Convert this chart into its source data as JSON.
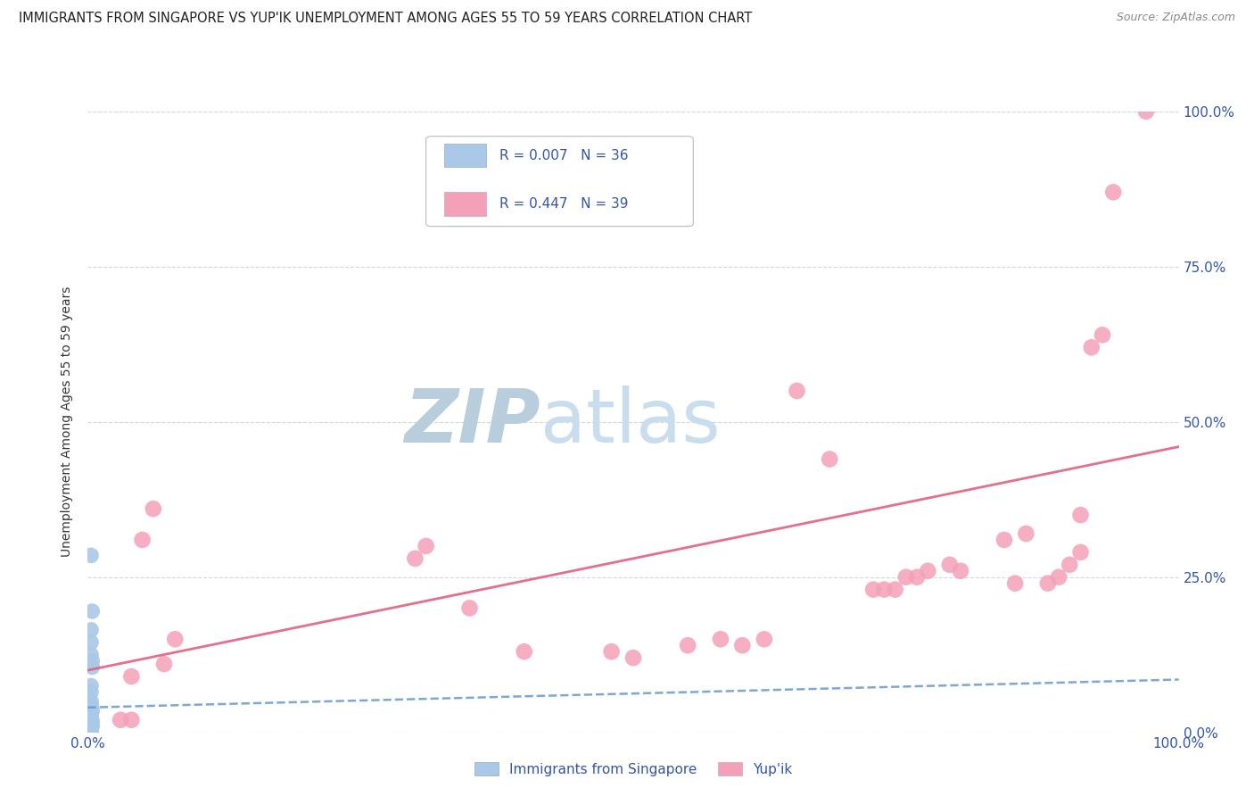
{
  "title": "IMMIGRANTS FROM SINGAPORE VS YUP'IK UNEMPLOYMENT AMONG AGES 55 TO 59 YEARS CORRELATION CHART",
  "source": "Source: ZipAtlas.com",
  "ylabel": "Unemployment Among Ages 55 to 59 years",
  "xlim": [
    0,
    1.0
  ],
  "ylim": [
    0,
    1.0
  ],
  "xticks": [
    0.0,
    0.25,
    0.5,
    0.75,
    1.0
  ],
  "yticks": [
    0.0,
    0.25,
    0.5,
    0.75,
    1.0
  ],
  "right_yticklabels": [
    "0.0%",
    "25.0%",
    "50.0%",
    "75.0%",
    "100.0%"
  ],
  "legend_r1": "R = 0.007",
  "legend_n1": "N = 36",
  "legend_r2": "R = 0.447",
  "legend_n2": "N = 39",
  "series1_label": "Immigrants from Singapore",
  "series2_label": "Yup'ik",
  "color1": "#aac8e8",
  "color2": "#f4a0b8",
  "trendline1_color": "#6699cc",
  "trendline2_color": "#e06080",
  "background_color": "#ffffff",
  "grid_color": "#cccccc",
  "title_color": "#222222",
  "axis_label_color": "#333333",
  "tick_color": "#3355aa",
  "watermark_zip": "ZIP",
  "watermark_atlas": "atlas",
  "watermark_color": "#ccdded",
  "sg_x": [
    0.003,
    0.004,
    0.003,
    0.003,
    0.003,
    0.004,
    0.004,
    0.003,
    0.003,
    0.003,
    0.003,
    0.003,
    0.004,
    0.003,
    0.003,
    0.003,
    0.004,
    0.003,
    0.003,
    0.003,
    0.004,
    0.003,
    0.003,
    0.003,
    0.003,
    0.003,
    0.003,
    0.003,
    0.003,
    0.003,
    0.003,
    0.003,
    0.003,
    0.003,
    0.003,
    0.003
  ],
  "sg_y": [
    0.285,
    0.195,
    0.165,
    0.145,
    0.125,
    0.115,
    0.105,
    0.075,
    0.065,
    0.05,
    0.045,
    0.04,
    0.035,
    0.03,
    0.025,
    0.02,
    0.018,
    0.016,
    0.014,
    0.012,
    0.01,
    0.009,
    0.008,
    0.007,
    0.007,
    0.006,
    0.006,
    0.005,
    0.005,
    0.004,
    0.004,
    0.003,
    0.003,
    0.002,
    0.002,
    0.001
  ],
  "yupik_x": [
    0.97,
    0.94,
    0.93,
    0.92,
    0.91,
    0.91,
    0.9,
    0.89,
    0.88,
    0.86,
    0.85,
    0.84,
    0.8,
    0.79,
    0.77,
    0.76,
    0.75,
    0.74,
    0.73,
    0.72,
    0.68,
    0.65,
    0.62,
    0.6,
    0.58,
    0.55,
    0.5,
    0.48,
    0.4,
    0.35,
    0.31,
    0.3,
    0.08,
    0.07,
    0.06,
    0.05,
    0.04,
    0.04,
    0.03
  ],
  "yupik_y": [
    1.0,
    0.87,
    0.64,
    0.62,
    0.35,
    0.29,
    0.27,
    0.25,
    0.24,
    0.32,
    0.24,
    0.31,
    0.26,
    0.27,
    0.26,
    0.25,
    0.25,
    0.23,
    0.23,
    0.23,
    0.44,
    0.55,
    0.15,
    0.14,
    0.15,
    0.14,
    0.12,
    0.13,
    0.13,
    0.2,
    0.3,
    0.28,
    0.15,
    0.11,
    0.36,
    0.31,
    0.09,
    0.02,
    0.02
  ],
  "trendline1_x": [
    0.0,
    1.0
  ],
  "trendline1_y": [
    0.04,
    0.085
  ],
  "trendline2_x": [
    0.0,
    1.0
  ],
  "trendline2_y": [
    0.1,
    0.46
  ]
}
